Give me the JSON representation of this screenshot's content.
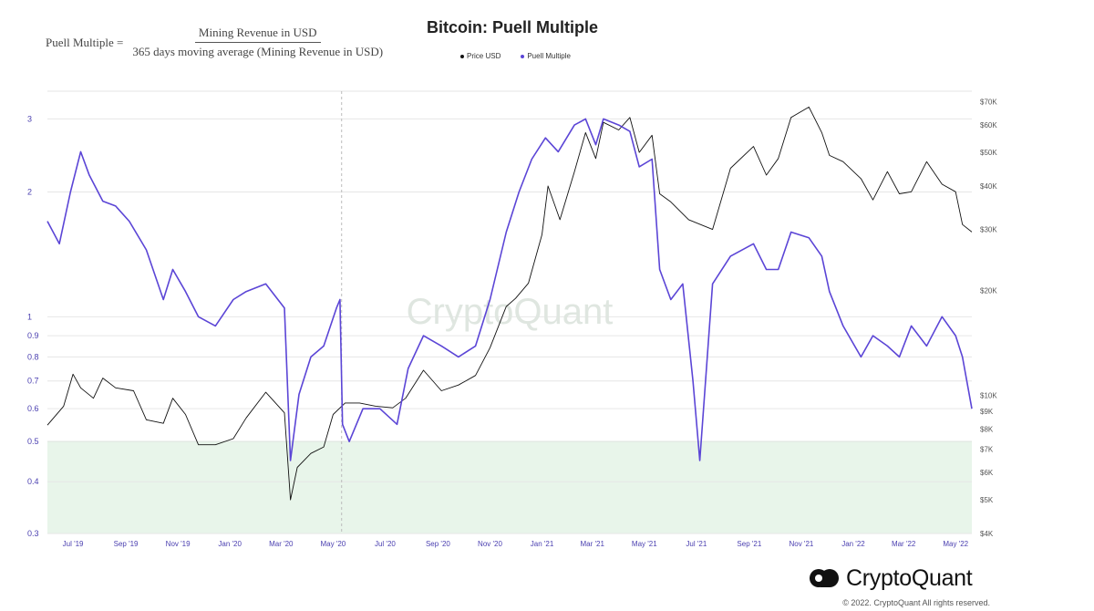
{
  "formula": {
    "lhs": "Puell Multiple =",
    "numerator": "Mining Revenue in USD",
    "denominator": "365 days moving average (Mining Revenue in USD)"
  },
  "brand": {
    "name": "CryptoQuant",
    "watermark": "CryptoQuant",
    "copyright": "© 2022. CryptoQuant All rights reserved."
  },
  "colors": {
    "price": "#111111",
    "puell": "#5b45d6",
    "zone": "#e8f5ea",
    "grid": "#e6e6e6"
  },
  "chart_data": {
    "type": "line",
    "title": "Bitcoin: Puell Multiple",
    "legend_position": "top-center",
    "grid": true,
    "x_ticks": [
      "Jul '19",
      "Sep '19",
      "Nov '19",
      "Jan '20",
      "Mar '20",
      "May '20",
      "Jul '20",
      "Sep '20",
      "Nov '20",
      "Jan '21",
      "Mar '21",
      "May '21",
      "Jul '21",
      "Sep '21",
      "Nov '21",
      "Jan '22",
      "Mar '22",
      "May '22"
    ],
    "x_range": [
      "2019-06-01",
      "2022-05-20"
    ],
    "y_left": {
      "scale": "log",
      "range": [
        0.3,
        3.5
      ],
      "ticks": [
        "0.3",
        "0.4",
        "0.5",
        "0.6",
        "0.7",
        "0.8",
        "0.9",
        "1",
        "2",
        "3"
      ]
    },
    "y_right": {
      "scale": "log",
      "range": [
        4000,
        75000
      ],
      "ticks": [
        "$4K",
        "$5K",
        "$6K",
        "$7K",
        "$8K",
        "$9K",
        "$10K",
        "$20K",
        "$30K",
        "$40K",
        "$50K",
        "$60K",
        "$70K"
      ]
    },
    "zone": {
      "axis": "left",
      "from": 0.3,
      "to": 0.5
    },
    "marker_date": "2020-05-11",
    "series": [
      {
        "name": "Price USD",
        "axis": "right",
        "x": [
          "2019-06-01",
          "2019-06-20",
          "2019-07-01",
          "2019-07-10",
          "2019-07-25",
          "2019-08-05",
          "2019-08-20",
          "2019-09-10",
          "2019-09-25",
          "2019-10-15",
          "2019-10-26",
          "2019-11-10",
          "2019-11-25",
          "2019-12-15",
          "2020-01-05",
          "2020-01-20",
          "2020-02-12",
          "2020-03-05",
          "2020-03-12",
          "2020-03-20",
          "2020-04-05",
          "2020-04-20",
          "2020-05-01",
          "2020-05-15",
          "2020-06-01",
          "2020-06-20",
          "2020-07-10",
          "2020-07-25",
          "2020-08-15",
          "2020-09-05",
          "2020-09-25",
          "2020-10-15",
          "2020-11-01",
          "2020-11-20",
          "2020-12-01",
          "2020-12-16",
          "2021-01-01",
          "2021-01-08",
          "2021-01-22",
          "2021-02-08",
          "2021-02-21",
          "2021-03-05",
          "2021-03-14",
          "2021-04-01",
          "2021-04-14",
          "2021-04-25",
          "2021-05-10",
          "2021-05-19",
          "2021-06-01",
          "2021-06-22",
          "2021-07-20",
          "2021-08-10",
          "2021-09-06",
          "2021-09-21",
          "2021-10-05",
          "2021-10-20",
          "2021-11-10",
          "2021-11-25",
          "2021-12-04",
          "2021-12-20",
          "2022-01-10",
          "2022-01-24",
          "2022-02-10",
          "2022-02-24",
          "2022-03-10",
          "2022-03-28",
          "2022-04-15",
          "2022-05-01",
          "2022-05-09",
          "2022-05-20"
        ],
        "y": [
          8200,
          9300,
          11500,
          10500,
          9800,
          11200,
          10500,
          10300,
          8500,
          8300,
          9800,
          8800,
          7200,
          7200,
          7500,
          8600,
          10200,
          8900,
          5000,
          6200,
          6800,
          7100,
          8800,
          9500,
          9500,
          9300,
          9200,
          9800,
          11800,
          10300,
          10700,
          11400,
          13700,
          18000,
          19000,
          21000,
          29000,
          40000,
          32000,
          44000,
          57000,
          48000,
          61000,
          58000,
          63000,
          50000,
          56000,
          38000,
          36000,
          32000,
          30000,
          45000,
          52000,
          43000,
          48000,
          63000,
          67500,
          57000,
          49000,
          47000,
          42000,
          36500,
          44000,
          38000,
          38500,
          47000,
          40500,
          38500,
          31000,
          29500
        ]
      },
      {
        "name": "Puell Multiple",
        "axis": "left",
        "x": [
          "2019-06-01",
          "2019-06-15",
          "2019-06-28",
          "2019-07-10",
          "2019-07-20",
          "2019-08-05",
          "2019-08-20",
          "2019-09-05",
          "2019-09-25",
          "2019-10-15",
          "2019-10-26",
          "2019-11-10",
          "2019-11-25",
          "2019-12-15",
          "2020-01-05",
          "2020-01-20",
          "2020-02-12",
          "2020-03-05",
          "2020-03-12",
          "2020-03-22",
          "2020-04-05",
          "2020-04-20",
          "2020-05-05",
          "2020-05-09",
          "2020-05-12",
          "2020-05-20",
          "2020-06-05",
          "2020-06-25",
          "2020-07-15",
          "2020-07-28",
          "2020-08-15",
          "2020-09-05",
          "2020-09-25",
          "2020-10-15",
          "2020-11-01",
          "2020-11-20",
          "2020-12-05",
          "2020-12-20",
          "2021-01-05",
          "2021-01-20",
          "2021-02-08",
          "2021-02-21",
          "2021-03-05",
          "2021-03-14",
          "2021-04-01",
          "2021-04-14",
          "2021-04-25",
          "2021-05-10",
          "2021-05-19",
          "2021-06-01",
          "2021-06-15",
          "2021-06-27",
          "2021-07-05",
          "2021-07-20",
          "2021-08-10",
          "2021-09-06",
          "2021-09-21",
          "2021-10-05",
          "2021-10-20",
          "2021-11-10",
          "2021-11-25",
          "2021-12-04",
          "2021-12-20",
          "2022-01-10",
          "2022-01-24",
          "2022-02-10",
          "2022-02-24",
          "2022-03-10",
          "2022-03-28",
          "2022-04-15",
          "2022-05-01",
          "2022-05-09",
          "2022-05-20"
        ],
        "y": [
          1.7,
          1.5,
          2.0,
          2.5,
          2.2,
          1.9,
          1.85,
          1.7,
          1.45,
          1.1,
          1.3,
          1.15,
          1.0,
          0.95,
          1.1,
          1.15,
          1.2,
          1.05,
          0.45,
          0.65,
          0.8,
          0.85,
          1.05,
          1.1,
          0.55,
          0.5,
          0.6,
          0.6,
          0.55,
          0.75,
          0.9,
          0.85,
          0.8,
          0.85,
          1.1,
          1.6,
          2.0,
          2.4,
          2.7,
          2.5,
          2.9,
          3.0,
          2.6,
          3.0,
          2.9,
          2.8,
          2.3,
          2.4,
          1.3,
          1.1,
          1.2,
          0.7,
          0.45,
          1.2,
          1.4,
          1.5,
          1.3,
          1.3,
          1.6,
          1.55,
          1.4,
          1.15,
          0.95,
          0.8,
          0.9,
          0.85,
          0.8,
          0.95,
          0.85,
          1.0,
          0.9,
          0.8,
          0.6
        ]
      }
    ]
  }
}
